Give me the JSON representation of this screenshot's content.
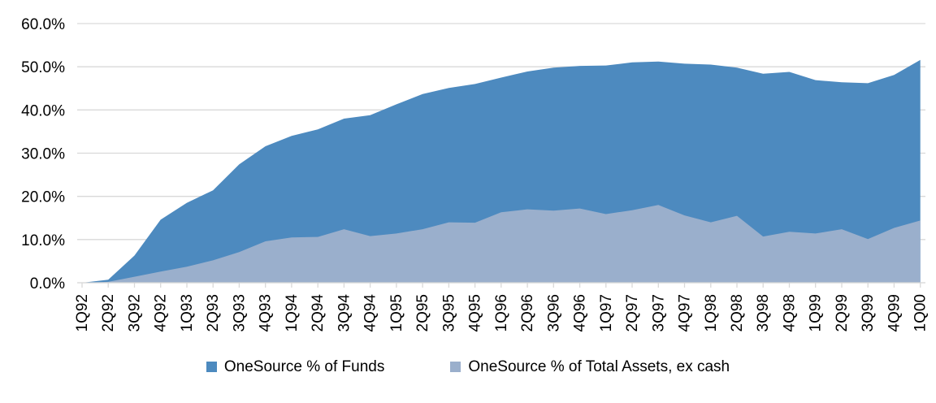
{
  "chart_data": {
    "type": "area",
    "title": "",
    "xlabel": "",
    "ylabel": "",
    "legend_position": "bottom",
    "grid": true,
    "series_overlap": true,
    "categories": [
      "1Q92",
      "2Q92",
      "3Q92",
      "4Q92",
      "1Q93",
      "2Q93",
      "3Q93",
      "4Q93",
      "1Q94",
      "2Q94",
      "3Q94",
      "4Q94",
      "1Q95",
      "2Q95",
      "3Q95",
      "4Q95",
      "1Q96",
      "2Q96",
      "3Q96",
      "4Q96",
      "1Q97",
      "2Q97",
      "3Q97",
      "4Q97",
      "1Q98",
      "2Q98",
      "3Q98",
      "4Q98",
      "1Q99",
      "2Q99",
      "3Q99",
      "4Q99",
      "1Q00"
    ],
    "series": [
      {
        "key": "onesource-pct-of-funds",
        "name": "OneSource % of Funds",
        "color": "#4D8ABF",
        "unit": "%",
        "values": [
          0,
          0.7,
          6.3,
          14.6,
          18.5,
          21.4,
          27.4,
          31.6,
          34.0,
          35.5,
          38.0,
          38.8,
          41.3,
          43.7,
          45.1,
          46.0,
          47.5,
          48.9,
          49.8,
          50.2,
          50.3,
          51.0,
          51.2,
          50.7,
          50.5,
          49.8,
          48.4,
          48.8,
          46.9,
          46.4,
          46.2,
          48.1,
          51.6
        ]
      },
      {
        "key": "onesource-pct-of-total-assets-ex-cash",
        "name": "OneSource % of Total Assets, ex cash",
        "color": "#9AAFCC",
        "unit": "%",
        "values": [
          0,
          0.2,
          1.4,
          2.6,
          3.7,
          5.2,
          7.1,
          9.6,
          10.5,
          10.6,
          12.4,
          10.8,
          11.4,
          12.4,
          14.0,
          13.9,
          16.3,
          17.0,
          16.7,
          17.2,
          15.9,
          16.8,
          18.0,
          15.6,
          14.0,
          15.5,
          10.7,
          11.8,
          11.4,
          12.4,
          10.1,
          12.7,
          14.4
        ]
      }
    ],
    "y_axis": {
      "min": 0,
      "max": 60,
      "step": 10,
      "tick_values": [
        0,
        10,
        20,
        30,
        40,
        50,
        60
      ],
      "tick_labels": [
        "0.0%",
        "10.0%",
        "20.0%",
        "30.0%",
        "40.0%",
        "50.0%",
        "60.0%"
      ]
    }
  },
  "colors": {
    "gridline": "#D9D9D9",
    "axis": "#D9D9D9",
    "text": "#000000",
    "background": "#FFFFFF"
  }
}
